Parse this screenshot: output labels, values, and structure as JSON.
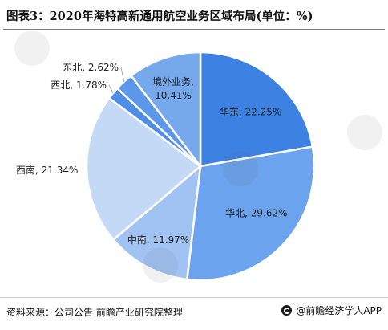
{
  "chart_data": {
    "type": "pie",
    "title": "图表3：2020年海特高新通用航空业务区域布局(单位：%)",
    "slices": [
      {
        "name": "华东",
        "label": "华东, 22.25%",
        "value": 22.25,
        "color": "#3d82e3"
      },
      {
        "name": "华北",
        "label": "华北, 29.62%",
        "value": 29.62,
        "color": "#6ba3ee"
      },
      {
        "name": "中南",
        "label": "中南, 11.97%",
        "value": 11.97,
        "color": "#a1c3f3"
      },
      {
        "name": "西南",
        "label": "西南, 21.34%",
        "value": 21.34,
        "color": "#c4d9f6"
      },
      {
        "name": "西北",
        "label": "西北, 1.78%",
        "value": 1.78,
        "color": "#4f8ee6"
      },
      {
        "name": "东北",
        "label": "东北, 2.62%",
        "value": 2.62,
        "color": "#5c97e9"
      },
      {
        "name": "境外业务",
        "label": "境外业务, 10.41%",
        "value": 10.41,
        "color": "#76a8ec"
      }
    ]
  },
  "footer": {
    "source": "资料来源：公司公告 前瞻产业研究院整理",
    "brand": "@前瞻经济学人APP"
  }
}
